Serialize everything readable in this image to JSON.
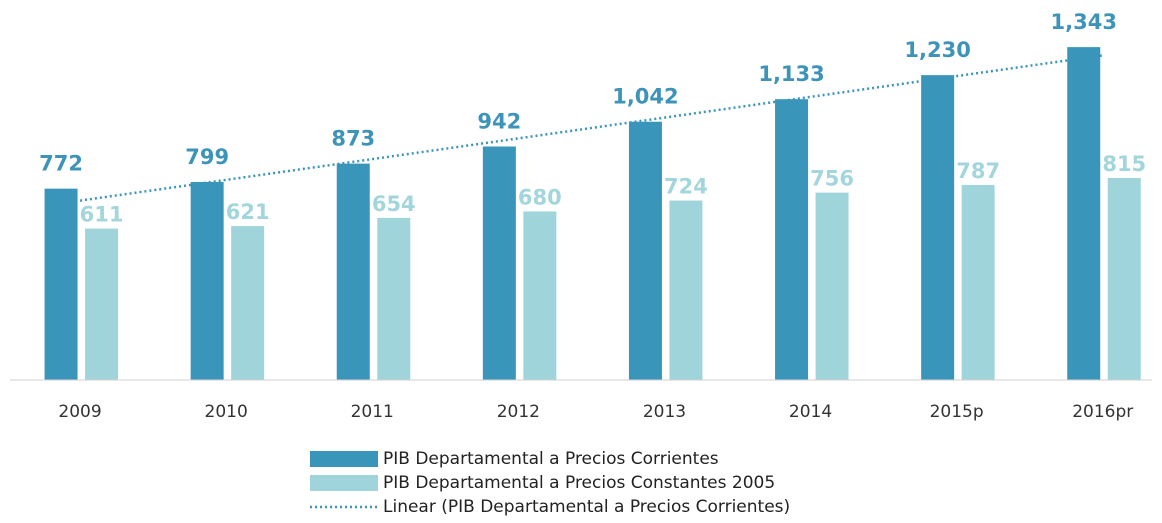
{
  "chart_data": {
    "type": "bar",
    "categories": [
      "2009",
      "2010",
      "2011",
      "2012",
      "2013",
      "2014",
      "2015p",
      "2016pr"
    ],
    "series": [
      {
        "name": "PIB Departamental a Precios Corrientes",
        "color": "#3a95ba",
        "values": [
          772,
          799,
          873,
          942,
          1042,
          1133,
          1230,
          1343
        ],
        "value_labels": [
          "772",
          "799",
          "873",
          "942",
          "1,042",
          "1,133",
          "1,230",
          "1,343"
        ],
        "trendline": {
          "type": "linear",
          "name": "Linear (PIB Departamental a Precios Corrientes)",
          "color": "#3a95ba"
        }
      },
      {
        "name": "PIB Departamental a Precios Constantes 2005",
        "color": "#9fd5da",
        "values": [
          611,
          621,
          654,
          680,
          724,
          756,
          787,
          815
        ]
      }
    ],
    "ylim": [
      0,
      1400
    ]
  }
}
